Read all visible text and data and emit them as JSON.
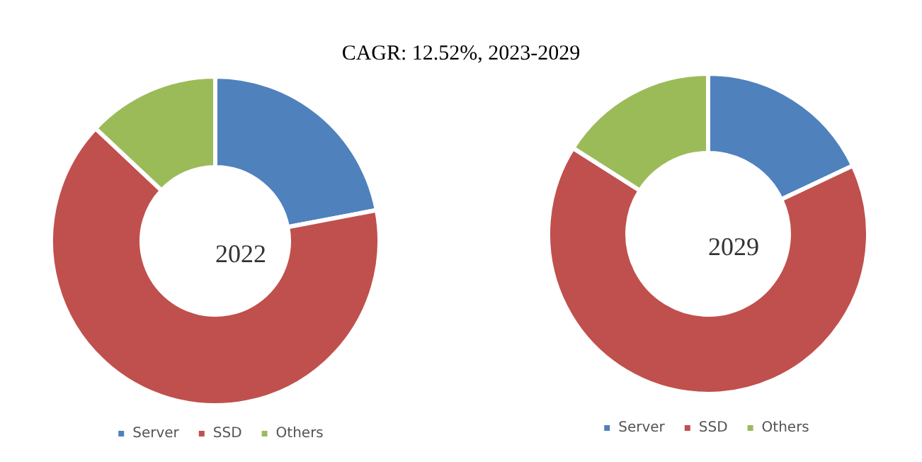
{
  "chart_data": [
    {
      "type": "donut",
      "title": "CAGR: 12.52%, 2023-2029",
      "annotations": [
        "2022"
      ],
      "categories": [
        "Server",
        "SSD",
        "Others"
      ],
      "values": [
        22,
        65,
        13
      ],
      "colors": [
        "#4f81bd",
        "#c0504d",
        "#9bbb59"
      ],
      "legend": "bottom"
    },
    {
      "type": "donut",
      "annotations": [
        "2029"
      ],
      "categories": [
        "Server",
        "SSD",
        "Others"
      ],
      "values": [
        18,
        66,
        16
      ],
      "colors": [
        "#4f81bd",
        "#c0504d",
        "#9bbb59"
      ],
      "legend": "bottom"
    }
  ]
}
